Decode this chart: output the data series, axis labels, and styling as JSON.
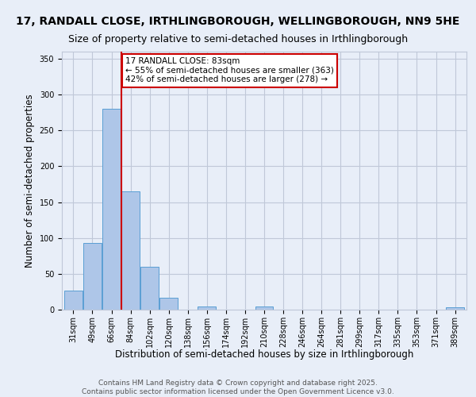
{
  "title_line1": "17, RANDALL CLOSE, IRTHLINGBOROUGH, WELLINGBOROUGH, NN9 5HE",
  "title_line2": "Size of property relative to semi-detached houses in Irthlingborough",
  "xlabel": "Distribution of semi-detached houses by size in Irthlingborough",
  "ylabel": "Number of semi-detached properties",
  "bin_labels": [
    "31sqm",
    "49sqm",
    "66sqm",
    "84sqm",
    "102sqm",
    "120sqm",
    "138sqm",
    "156sqm",
    "174sqm",
    "192sqm",
    "210sqm",
    "228sqm",
    "246sqm",
    "264sqm",
    "281sqm",
    "299sqm",
    "317sqm",
    "335sqm",
    "353sqm",
    "371sqm",
    "389sqm"
  ],
  "bar_values": [
    27,
    93,
    280,
    165,
    60,
    17,
    0,
    4,
    0,
    0,
    4,
    0,
    0,
    0,
    0,
    0,
    0,
    0,
    0,
    0,
    3
  ],
  "bar_color": "#aec6e8",
  "bar_edge_color": "#5a9fd4",
  "property_label": "17 RANDALL CLOSE: 83sqm",
  "pct_smaller": 55,
  "pct_smaller_count": 363,
  "pct_larger": 42,
  "pct_larger_count": 278,
  "vline_color": "#cc0000",
  "ylim": [
    0,
    360
  ],
  "yticks": [
    0,
    50,
    100,
    150,
    200,
    250,
    300,
    350
  ],
  "grid_color": "#c0c8d8",
  "bg_color": "#e8eef8",
  "footer_line1": "Contains HM Land Registry data © Crown copyright and database right 2025.",
  "footer_line2": "Contains public sector information licensed under the Open Government Licence v3.0.",
  "title_fontsize": 10,
  "subtitle_fontsize": 9,
  "axis_label_fontsize": 8.5,
  "tick_fontsize": 7,
  "footer_fontsize": 6.5,
  "annot_fontsize": 7.5
}
